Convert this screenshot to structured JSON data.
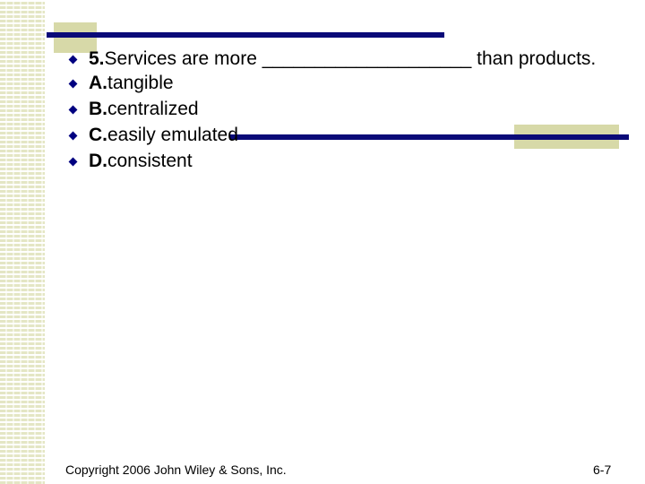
{
  "question": {
    "number": "5.",
    "text": "Services are more ____________________ than products."
  },
  "options": [
    {
      "letter": "A.",
      "text": "tangible"
    },
    {
      "letter": "B.",
      "text": "centralized"
    },
    {
      "letter": "C.",
      "text": "easily emulated"
    },
    {
      "letter": "D.",
      "text": "consistent"
    }
  ],
  "footer": {
    "copyright": "Copyright 2006 John Wiley & Sons, Inc.",
    "page": "6-7"
  },
  "colors": {
    "accent_navy": "#0a0a78",
    "accent_khaki": "#d7d9a8",
    "bullet": "#000080"
  }
}
